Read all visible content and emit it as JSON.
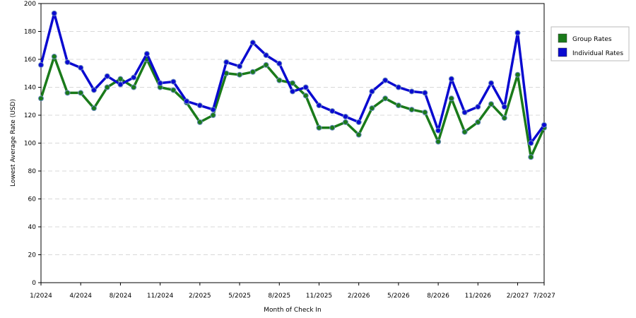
{
  "chart_data": {
    "type": "line",
    "xlabel": "Month of Check In",
    "ylabel": "Lowest Average Rate (USD)",
    "categories": [
      "1/2024",
      null,
      null,
      "4/2024",
      null,
      null,
      "8/2024",
      null,
      null,
      "11/2024",
      null,
      null,
      "2/2025",
      null,
      null,
      "5/2025",
      null,
      null,
      "8/2025",
      null,
      null,
      "11/2025",
      null,
      null,
      "2/2026",
      null,
      null,
      "5/2026",
      null,
      null,
      "8/2026",
      null,
      null,
      "11/2026",
      null,
      null,
      "2/2027",
      null,
      "7/2027"
    ],
    "series": [
      {
        "name": "Group Rates",
        "color": "#1a7a1a",
        "values": [
          132,
          162,
          136,
          136,
          125,
          140,
          146,
          140,
          160,
          140,
          138,
          129,
          115,
          120,
          150,
          149,
          151,
          156,
          145,
          143,
          134,
          111,
          111,
          115,
          106,
          125,
          132,
          127,
          124,
          122,
          101,
          132,
          108,
          115,
          128,
          118,
          149,
          90,
          111
        ]
      },
      {
        "name": "Individual Rates",
        "color": "#0a0ad0",
        "values": [
          156,
          193,
          158,
          154,
          138,
          148,
          142,
          147,
          164,
          143,
          144,
          130,
          127,
          124,
          158,
          155,
          172,
          163,
          157,
          137,
          140,
          127,
          123,
          119,
          115,
          137,
          145,
          140,
          137,
          136,
          109,
          146,
          122,
          126,
          143,
          126,
          179,
          100,
          113
        ]
      }
    ],
    "ylim": [
      0,
      200
    ],
    "yticks": [
      0,
      20,
      40,
      60,
      80,
      100,
      120,
      140,
      160,
      180,
      200
    ],
    "grid": true,
    "legend": "right"
  }
}
